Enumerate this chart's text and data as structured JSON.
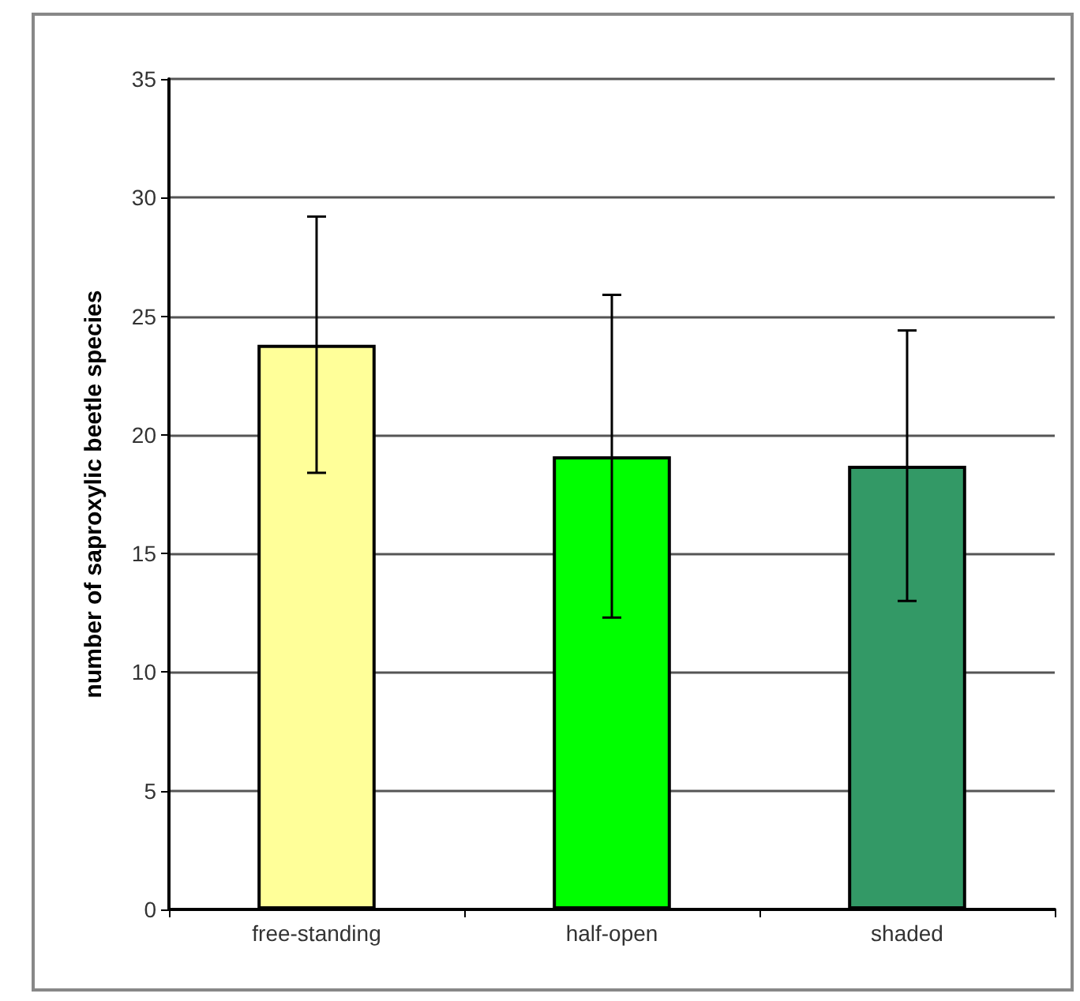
{
  "chart_data": {
    "type": "bar",
    "ylabel": "number of saproxylic beetle species",
    "categories": [
      "free-standing",
      "half-open",
      "shaded"
    ],
    "values": [
      23.8,
      19.1,
      18.7
    ],
    "colors": [
      "#ffff99",
      "#00ff00",
      "#339966"
    ],
    "errors": [
      5.4,
      6.8,
      5.7
    ],
    "ylim": [
      0,
      35
    ],
    "yticks": [
      0,
      5,
      10,
      15,
      20,
      25,
      30,
      35
    ],
    "grid": "y"
  }
}
